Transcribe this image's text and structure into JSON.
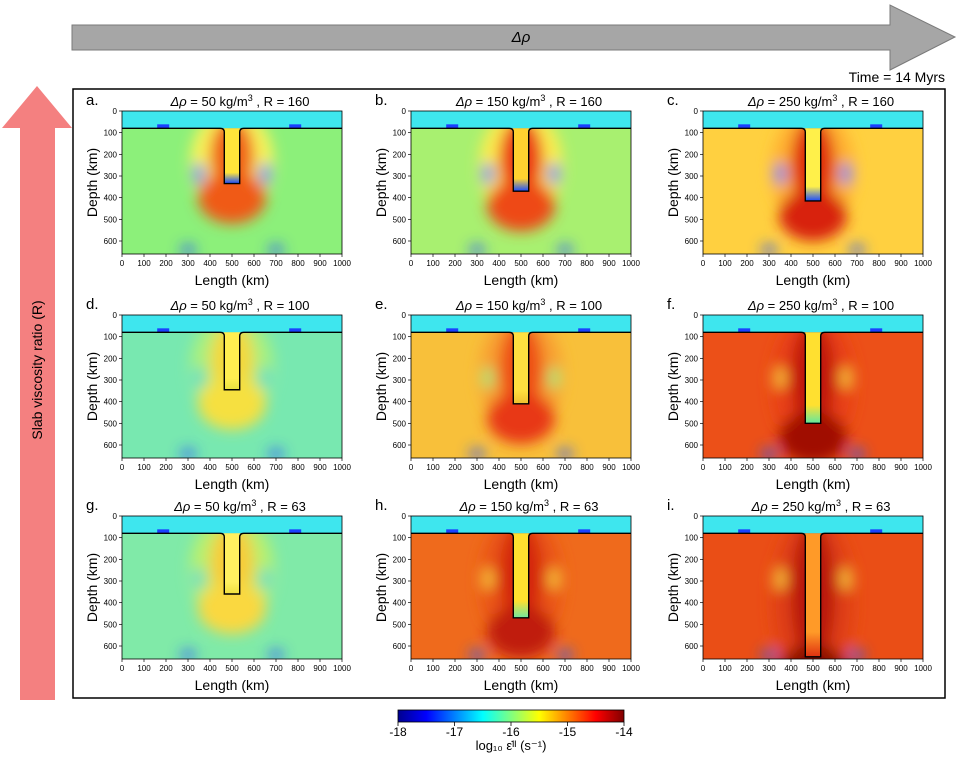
{
  "header": {
    "top_arrow_label": "Δρ",
    "side_arrow_label": "Slab viscosity ratio (R)",
    "time_label": "Time = 14 Myrs"
  },
  "colors": {
    "top_arrow": "#a6a6a6",
    "side_arrow": "#f48080",
    "colormap": [
      "#00008f",
      "#0000ff",
      "#0080ff",
      "#00ffff",
      "#80ff80",
      "#ffff00",
      "#ff8000",
      "#ff0000",
      "#800000"
    ]
  },
  "axes_common": {
    "xlabel": "Length (km)",
    "ylabel": "Depth (km)",
    "x_ticks": [
      "0",
      "100",
      "200",
      "300",
      "400",
      "500",
      "600",
      "700",
      "800",
      "900",
      "1000"
    ],
    "y_ticks": [
      "0",
      "100",
      "200",
      "300",
      "400",
      "500",
      "600"
    ],
    "xlim": [
      0,
      1000
    ],
    "ylim": [
      660,
      0
    ]
  },
  "panels": [
    {
      "letter": "a.",
      "drho": "50",
      "R": "160",
      "bg": "#8cf07a",
      "ring": "#f8f25a",
      "strong": "#f06018",
      "slab_bottom": 335,
      "slab_fill": "#ffe43a",
      "slab_tip": "#1a4cff",
      "side_blob": "#1e6cff",
      "deep": "#f05a18"
    },
    {
      "letter": "b.",
      "drho": "150",
      "R": "160",
      "bg": "#a8f070",
      "ring": "#fbec50",
      "strong": "#ec3a14",
      "slab_bottom": 370,
      "slab_fill": "#ffd230",
      "slab_tip": "#1a4cff",
      "side_blob": "#1e6cff",
      "deep": "#ee4a16"
    },
    {
      "letter": "c.",
      "drho": "250",
      "R": "160",
      "bg": "#ffd040",
      "ring": "#ffb030",
      "strong": "#e02a10",
      "slab_bottom": 415,
      "slab_fill": "#fff04a",
      "slab_tip": "#1a4cff",
      "side_blob": "#2a7cff",
      "deep": "#d8200e"
    },
    {
      "letter": "d.",
      "drho": "50",
      "R": "100",
      "bg": "#78e8b0",
      "ring": "#a8f080",
      "strong": "#f4d83a",
      "slab_bottom": 345,
      "slab_fill": "#ffee50",
      "slab_tip": "#e8e040",
      "side_blob": "#50d8d0",
      "deep": "#f6e040"
    },
    {
      "letter": "e.",
      "drho": "150",
      "R": "100",
      "bg": "#f8c03a",
      "ring": "#f8a030",
      "strong": "#ee5016",
      "slab_bottom": 410,
      "slab_fill": "#ffe040",
      "slab_tip": "#f0c030",
      "side_blob": "#8ef080",
      "deep": "#e83812"
    },
    {
      "letter": "f.",
      "drho": "250",
      "R": "100",
      "bg": "#ec5018",
      "ring": "#e84014",
      "strong": "#c01808",
      "slab_bottom": 500,
      "slab_fill": "#ffe030",
      "slab_tip": "#60e8a0",
      "side_blob": "#f8d040",
      "deep": "#a01006"
    },
    {
      "letter": "g.",
      "drho": "50",
      "R": "63",
      "bg": "#80eaa8",
      "ring": "#b8f070",
      "strong": "#f8cc38",
      "slab_bottom": 360,
      "slab_fill": "#fff060",
      "slab_tip": "#f0e040",
      "side_blob": "#50d8d0",
      "deep": "#fad840"
    },
    {
      "letter": "h.",
      "drho": "150",
      "R": "63",
      "bg": "#ef6a1c",
      "ring": "#ea5418",
      "strong": "#d42810",
      "slab_bottom": 470,
      "slab_fill": "#ffe030",
      "slab_tip": "#70e8a0",
      "side_blob": "#f8d040",
      "deep": "#c01c0a"
    },
    {
      "letter": "i.",
      "drho": "250",
      "R": "63",
      "bg": "#ea4e16",
      "ring": "#e04012",
      "strong": "#b81408",
      "slab_bottom": 650,
      "slab_fill": "#ff9a28",
      "slab_tip": "#e03010",
      "side_blob": "#f8d040",
      "deep": "#8a0c04"
    }
  ],
  "colorbar": {
    "ticks": [
      "-18",
      "-17",
      "-16",
      "-15",
      "-14"
    ],
    "range": [
      -18,
      -14
    ],
    "label": "log₁₀ ε̇ᴵᴵ (s⁻¹)"
  }
}
